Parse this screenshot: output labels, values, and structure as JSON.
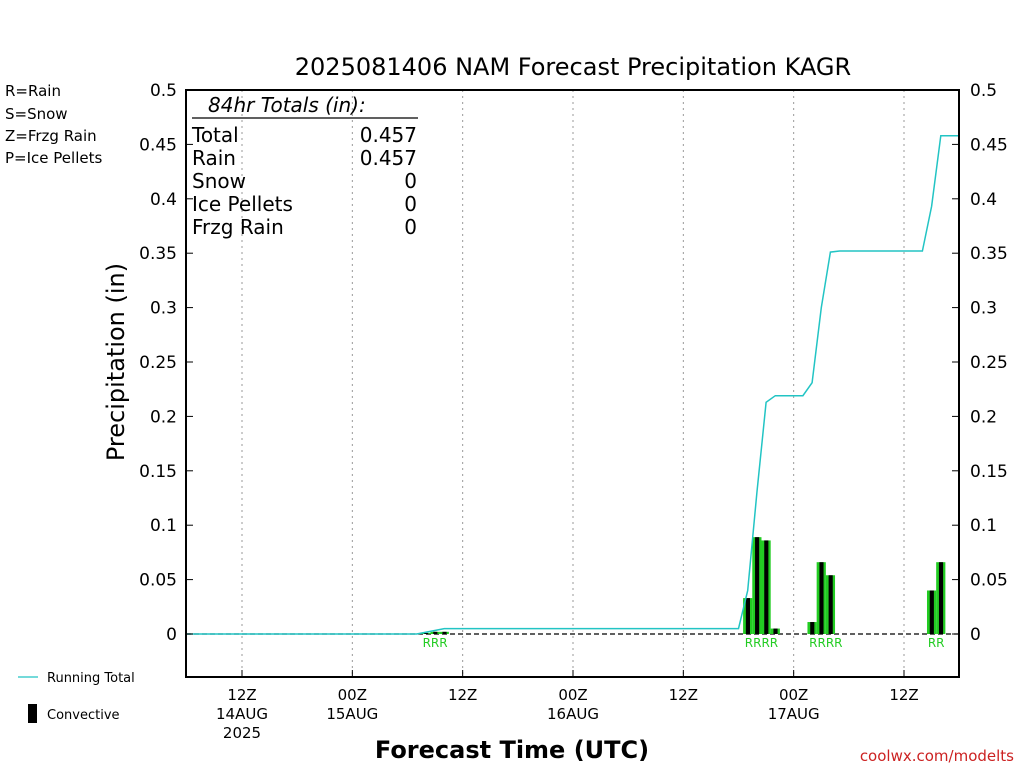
{
  "chart_data": {
    "type": "bar",
    "title": "2025081406 NAM Forecast Precipitation KAGR",
    "ylabel": "Precipitation (in)",
    "xlabel": "Forecast Time (UTC)",
    "ylim": [
      -0.04,
      0.5
    ],
    "yticks": [
      "0.5",
      "0.45",
      "0.4",
      "0.35",
      "0.3",
      "0.25",
      "0.2",
      "0.15",
      "0.1",
      "0.05",
      "0"
    ],
    "ytick_values": [
      0.5,
      0.45,
      0.4,
      0.35,
      0.3,
      0.25,
      0.2,
      0.15,
      0.1,
      0.05,
      0
    ],
    "xlim_hours": [
      6,
      90
    ],
    "x_hour_ticks": [
      {
        "hour": 12,
        "time": "12Z",
        "day": "14AUG",
        "year": "2025"
      },
      {
        "hour": 24,
        "time": "00Z",
        "day": "15AUG",
        "year": ""
      },
      {
        "hour": 36,
        "time": "12Z",
        "day": "",
        "year": ""
      },
      {
        "hour": 48,
        "time": "00Z",
        "day": "16AUG",
        "year": ""
      },
      {
        "hour": 60,
        "time": "12Z",
        "day": "",
        "year": ""
      },
      {
        "hour": 72,
        "time": "00Z",
        "day": "17AUG",
        "year": ""
      },
      {
        "hour": 84,
        "time": "12Z",
        "day": "",
        "year": ""
      }
    ],
    "grid": "vertical dotted at tick hours",
    "legend_left": [
      {
        "label": "R=Rain",
        "color": "#22cc22"
      },
      {
        "label": "S=Snow",
        "color": "#4455ee"
      },
      {
        "label": "Z=Frzg Rain",
        "color": "#ee8833"
      },
      {
        "label": "P=Ice Pellets",
        "color": "#ee2277"
      }
    ],
    "legend_bottom": [
      {
        "label": "Running Total",
        "kind": "line",
        "color": "#22c4c4"
      },
      {
        "label": "Convective",
        "kind": "bar",
        "color": "#000000"
      }
    ],
    "totals_box": {
      "heading": "84hr Totals (in):",
      "rows": [
        {
          "label": "Total",
          "value": "0.457"
        },
        {
          "label": "Rain",
          "value": "0.457"
        },
        {
          "label": "Snow",
          "value": "0"
        },
        {
          "label": "Ice Pellets",
          "value": "0"
        },
        {
          "label": "Frzg Rain",
          "value": "0"
        }
      ]
    },
    "series": [
      {
        "name": "Running Total",
        "color": "#22c4c4",
        "points": [
          [
            6,
            0
          ],
          [
            31,
            0
          ],
          [
            34,
            0.005
          ],
          [
            36,
            0.005
          ],
          [
            66,
            0.005
          ],
          [
            67,
            0.04
          ],
          [
            68,
            0.13
          ],
          [
            69,
            0.213
          ],
          [
            70,
            0.219
          ],
          [
            71,
            0.219
          ],
          [
            72,
            0.219
          ],
          [
            73,
            0.219
          ],
          [
            74,
            0.231
          ],
          [
            75,
            0.3
          ],
          [
            76,
            0.351
          ],
          [
            77,
            0.352
          ],
          [
            78,
            0.352
          ],
          [
            79,
            0.352
          ],
          [
            80,
            0.352
          ],
          [
            81,
            0.352
          ],
          [
            82,
            0.352
          ],
          [
            83,
            0.352
          ],
          [
            84,
            0.352
          ],
          [
            85,
            0.352
          ],
          [
            86,
            0.352
          ],
          [
            87,
            0.393
          ],
          [
            88,
            0.458
          ],
          [
            89,
            0.458
          ],
          [
            90,
            0.458
          ]
        ]
      },
      {
        "name": "Precipitation",
        "bars": [
          {
            "hour": 32,
            "value": 0.001,
            "ptype": "R"
          },
          {
            "hour": 33,
            "value": 0.002,
            "ptype": "R"
          },
          {
            "hour": 34,
            "value": 0.002,
            "ptype": "R"
          },
          {
            "hour": 67,
            "value": 0.033,
            "ptype": "R"
          },
          {
            "hour": 68,
            "value": 0.089,
            "ptype": "R"
          },
          {
            "hour": 69,
            "value": 0.086,
            "ptype": "R"
          },
          {
            "hour": 70,
            "value": 0.005,
            "ptype": "R"
          },
          {
            "hour": 74,
            "value": 0.011,
            "ptype": "R"
          },
          {
            "hour": 75,
            "value": 0.066,
            "ptype": "R"
          },
          {
            "hour": 76,
            "value": 0.054,
            "ptype": "R"
          },
          {
            "hour": 77,
            "value": 0.0,
            "ptype": "R"
          },
          {
            "hour": 87,
            "value": 0.04,
            "ptype": "R"
          },
          {
            "hour": 88,
            "value": 0.066,
            "ptype": "R"
          }
        ]
      }
    ],
    "precip_type_labels": [
      {
        "hours": [
          32,
          33,
          34
        ],
        "text": "RRR"
      },
      {
        "hours": [
          67,
          68,
          69,
          70
        ],
        "text": "RRRR"
      },
      {
        "hours": [
          74,
          75,
          76,
          77
        ],
        "text": "RRRR"
      },
      {
        "hours": [
          87,
          88
        ],
        "text": "RR"
      }
    ],
    "colors": {
      "rain_bar": "#22cc22",
      "convective": "#000000",
      "running_total": "#22c4c4",
      "type_label": "#22cc22"
    }
  },
  "footer": {
    "credit": "coolwx.com/modelts"
  }
}
